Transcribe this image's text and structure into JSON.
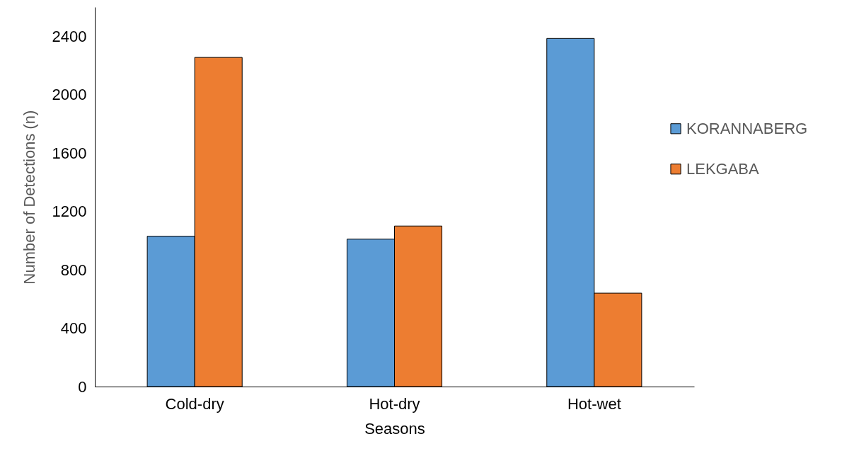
{
  "chart_data": {
    "type": "bar",
    "xlabel": "Seasons",
    "ylabel": "Number of Detections (n)",
    "categories": [
      "Cold-dry",
      "Hot-dry",
      "Hot-wet"
    ],
    "series": [
      {
        "name": "KORANNABERG",
        "color": "#5b9bd5",
        "values": [
          1030,
          1010,
          2385
        ]
      },
      {
        "name": "LEKGABA",
        "color": "#ed7d31",
        "values": [
          2255,
          1100,
          640
        ]
      }
    ],
    "ylim": [
      0,
      2600
    ],
    "yticks": [
      0,
      400,
      800,
      1200,
      1600,
      2000,
      2400
    ],
    "grid": false,
    "legend": "right"
  }
}
